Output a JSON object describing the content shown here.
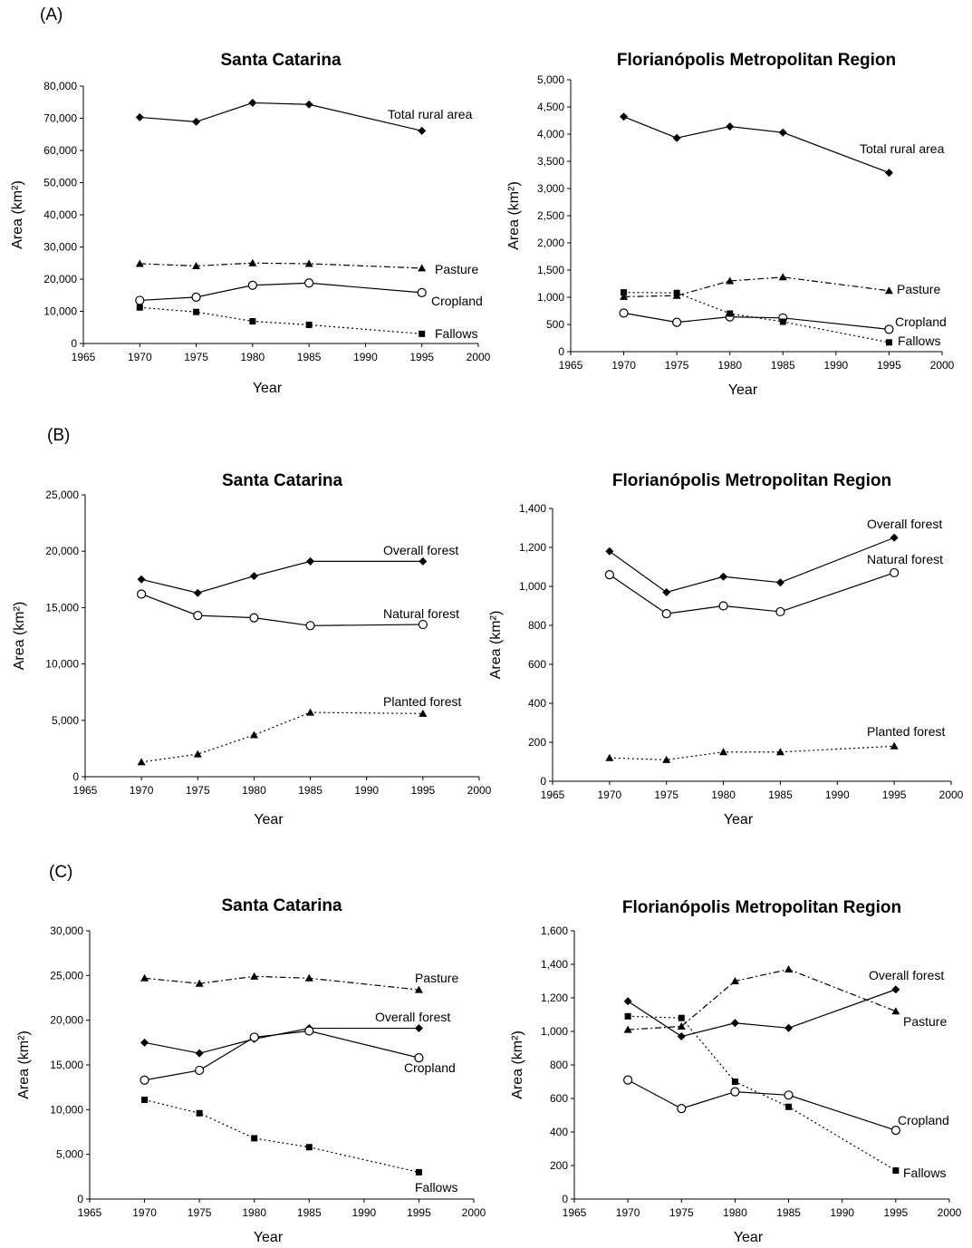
{
  "panels": [
    {
      "label": "(A)"
    },
    {
      "label": "(B)"
    },
    {
      "label": "(C)"
    }
  ],
  "chart_data": [
    {
      "id": "A-left",
      "type": "line",
      "title": "Santa Catarina",
      "xlabel": "Year",
      "ylabel": "Area (km²)",
      "xlim": [
        1965,
        2000
      ],
      "ylim": [
        0,
        80000
      ],
      "ystep": 10000,
      "xticks": [
        "1965",
        "1970",
        "1975",
        "1980",
        "1985",
        "1990",
        "1995",
        "2000"
      ],
      "yticks": [
        "0",
        "10,000",
        "20,000",
        "30,000",
        "40,000",
        "50,000",
        "60,000",
        "70,000",
        "80,000"
      ],
      "x": [
        1970,
        1975,
        1980,
        1985,
        1995
      ],
      "series": [
        {
          "name": "Total rural area",
          "marker": "diamond",
          "dash": "solid",
          "values": [
            70300,
            68900,
            74800,
            74300,
            66100
          ]
        },
        {
          "name": "Pasture",
          "marker": "triangle",
          "dash": "dashdot",
          "values": [
            24800,
            24100,
            25000,
            24800,
            23400
          ]
        },
        {
          "name": "Cropland",
          "marker": "circle",
          "dash": "solid",
          "values": [
            13400,
            14400,
            18100,
            18800,
            15800
          ]
        },
        {
          "name": "Fallows",
          "marker": "square",
          "dash": "dotted",
          "values": [
            11200,
            9800,
            6900,
            5800,
            3000
          ]
        }
      ]
    },
    {
      "id": "A-right",
      "type": "line",
      "title": "Florianópolis Metropolitan Region",
      "xlabel": "Year",
      "ylabel": "Area (km²)",
      "xlim": [
        1965,
        2000
      ],
      "ylim": [
        0,
        5000
      ],
      "ystep": 500,
      "xticks": [
        "1965",
        "1970",
        "1975",
        "1980",
        "1985",
        "1990",
        "1995",
        "2000"
      ],
      "yticks": [
        "0",
        "500",
        "1,000",
        "1,500",
        "2,000",
        "2,500",
        "3,000",
        "3,500",
        "4,000",
        "4,500",
        "5,000"
      ],
      "x": [
        1970,
        1975,
        1980,
        1985,
        1995
      ],
      "series": [
        {
          "name": "Total rural area",
          "marker": "diamond",
          "dash": "solid",
          "values": [
            4320,
            3930,
            4140,
            4030,
            3290
          ]
        },
        {
          "name": "Pasture",
          "marker": "triangle",
          "dash": "dashdot",
          "values": [
            1010,
            1030,
            1300,
            1370,
            1120
          ]
        },
        {
          "name": "Cropland",
          "marker": "circle",
          "dash": "solid",
          "values": [
            710,
            540,
            640,
            620,
            410
          ]
        },
        {
          "name": "Fallows",
          "marker": "square",
          "dash": "dotted",
          "values": [
            1090,
            1080,
            700,
            550,
            170
          ]
        }
      ]
    },
    {
      "id": "B-left",
      "type": "line",
      "title": "Santa Catarina",
      "xlabel": "Year",
      "ylabel": "Area (km²)",
      "xlim": [
        1965,
        2000
      ],
      "ylim": [
        0,
        25000
      ],
      "ystep": 5000,
      "xticks": [
        "1965",
        "1970",
        "1975",
        "1980",
        "1985",
        "1990",
        "1995",
        "2000"
      ],
      "yticks": [
        "0",
        "5,000",
        "10,000",
        "15,000",
        "20,000",
        "25,000"
      ],
      "x": [
        1970,
        1975,
        1980,
        1985,
        1995
      ],
      "series": [
        {
          "name": "Overall forest",
          "marker": "diamond",
          "dash": "solid",
          "values": [
            17500,
            16300,
            17800,
            19100,
            19100
          ]
        },
        {
          "name": "Natural forest",
          "marker": "circle",
          "dash": "solid",
          "values": [
            16200,
            14300,
            14100,
            13400,
            13500
          ]
        },
        {
          "name": "Planted forest",
          "marker": "triangle",
          "dash": "dotted",
          "values": [
            1300,
            2000,
            3700,
            5700,
            5600
          ]
        }
      ]
    },
    {
      "id": "B-right",
      "type": "line",
      "title": "Florianópolis Metropolitan Region",
      "xlabel": "Year",
      "ylabel": "Area (km²)",
      "xlim": [
        1965,
        2000
      ],
      "ylim": [
        0,
        1400
      ],
      "ystep": 200,
      "xticks": [
        "1965",
        "1970",
        "1975",
        "1980",
        "1985",
        "1990",
        "1995",
        "2000"
      ],
      "yticks": [
        "0",
        "200",
        "400",
        "600",
        "800",
        "1,000",
        "1,200",
        "1,400"
      ],
      "x": [
        1970,
        1975,
        1980,
        1985,
        1995
      ],
      "series": [
        {
          "name": "Overall forest",
          "marker": "diamond",
          "dash": "solid",
          "values": [
            1180,
            970,
            1050,
            1020,
            1250
          ]
        },
        {
          "name": "Natural forest",
          "marker": "circle",
          "dash": "solid",
          "values": [
            1060,
            860,
            900,
            870,
            1070
          ]
        },
        {
          "name": "Planted forest",
          "marker": "triangle",
          "dash": "dotted",
          "values": [
            120,
            110,
            150,
            150,
            180
          ]
        }
      ]
    },
    {
      "id": "C-left",
      "type": "line",
      "title": "Santa Catarina",
      "xlabel": "Year",
      "ylabel": "Area (km²)",
      "xlim": [
        1965,
        2000
      ],
      "ylim": [
        0,
        30000
      ],
      "ystep": 5000,
      "xticks": [
        "1965",
        "1970",
        "1975",
        "1980",
        "1985",
        "1990",
        "1995",
        "2000"
      ],
      "yticks": [
        "0",
        "5,000",
        "10,000",
        "15,000",
        "20,000",
        "25,000",
        "30,000"
      ],
      "x": [
        1970,
        1975,
        1980,
        1985,
        1995
      ],
      "series": [
        {
          "name": "Pasture",
          "marker": "triangle",
          "dash": "dashdot",
          "values": [
            24700,
            24100,
            24900,
            24700,
            23400
          ]
        },
        {
          "name": "Overall forest",
          "marker": "diamond",
          "dash": "solid",
          "values": [
            17500,
            16300,
            17900,
            19100,
            19100
          ]
        },
        {
          "name": "Cropland",
          "marker": "circle",
          "dash": "solid",
          "values": [
            13300,
            14400,
            18100,
            18800,
            15800
          ]
        },
        {
          "name": "Fallows",
          "marker": "square",
          "dash": "dotted",
          "values": [
            11100,
            9600,
            6800,
            5800,
            3000
          ]
        }
      ]
    },
    {
      "id": "C-right",
      "type": "line",
      "title": "Florianópolis Metropolitan Region",
      "xlabel": "Year",
      "ylabel": "Area (km²)",
      "xlim": [
        1965,
        2000
      ],
      "ylim": [
        0,
        1600
      ],
      "ystep": 200,
      "xticks": [
        "1965",
        "1970",
        "1975",
        "1980",
        "1985",
        "1990",
        "1995",
        "2000"
      ],
      "yticks": [
        "0",
        "200",
        "400",
        "600",
        "800",
        "1,000",
        "1,200",
        "1,400",
        "1,600"
      ],
      "x": [
        1970,
        1975,
        1980,
        1985,
        1995
      ],
      "series": [
        {
          "name": "Overall forest",
          "marker": "diamond",
          "dash": "solid",
          "values": [
            1180,
            970,
            1050,
            1020,
            1250
          ]
        },
        {
          "name": "Pasture",
          "marker": "triangle",
          "dash": "dashdot",
          "values": [
            1010,
            1030,
            1300,
            1370,
            1120
          ]
        },
        {
          "name": "Cropland",
          "marker": "circle",
          "dash": "solid",
          "values": [
            710,
            540,
            640,
            620,
            410
          ]
        },
        {
          "name": "Fallows",
          "marker": "square",
          "dash": "dotted",
          "values": [
            1090,
            1080,
            700,
            550,
            170
          ]
        }
      ]
    }
  ]
}
